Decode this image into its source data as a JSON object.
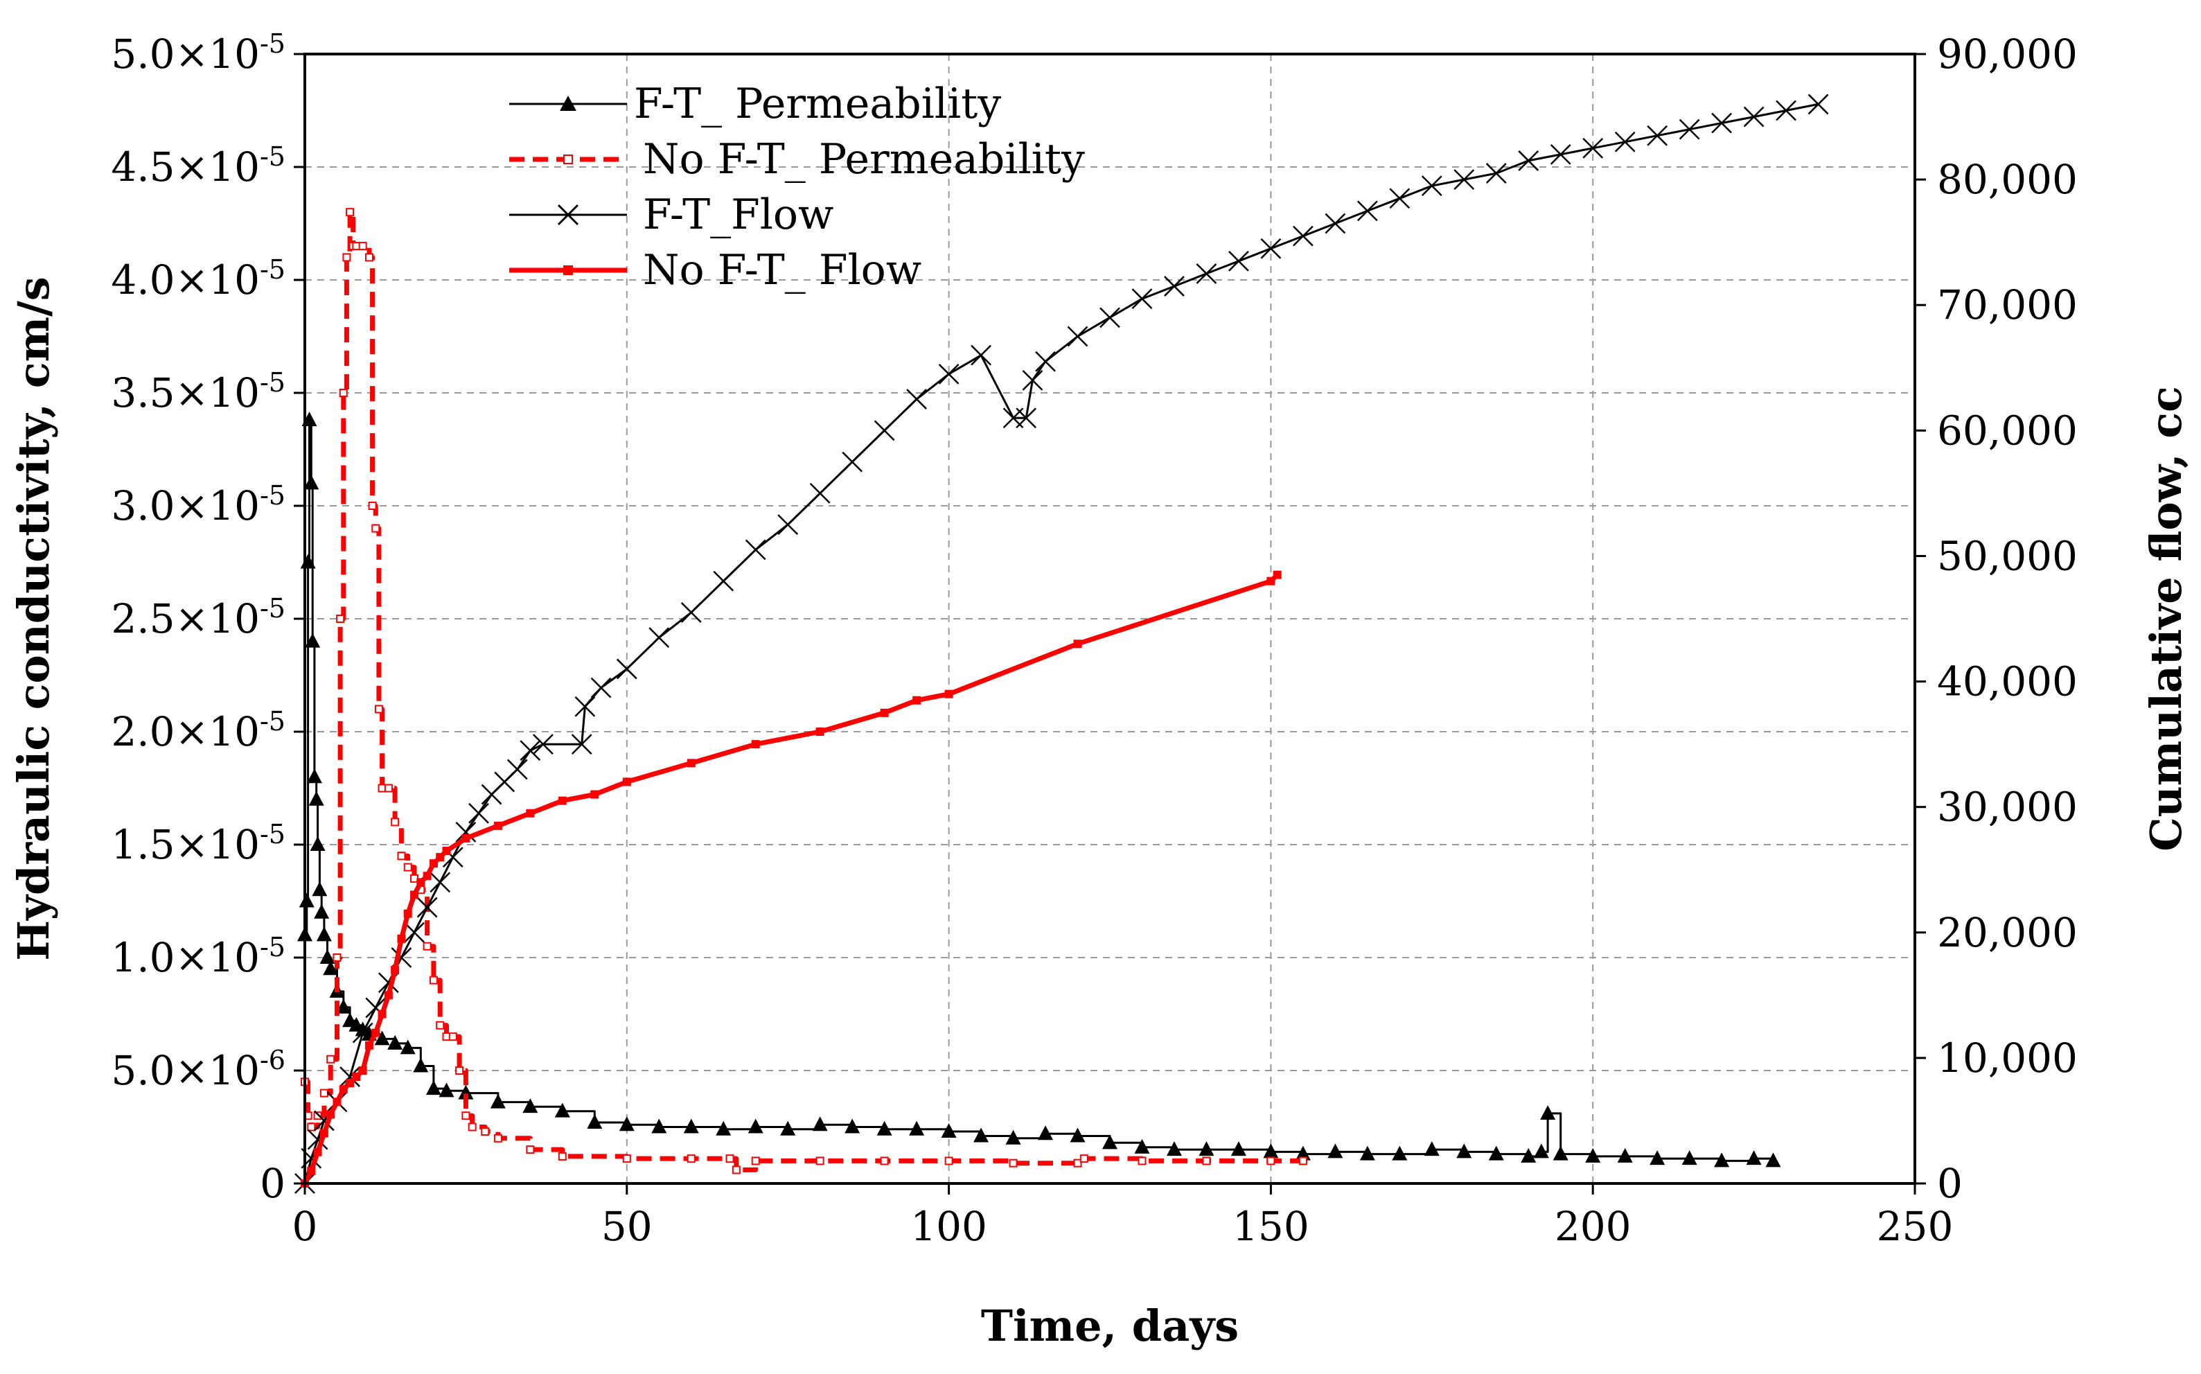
{
  "chart_data": {
    "type": "line",
    "title": "",
    "xlabel": "Time, days",
    "ylabel_left": "Hydraulic conductivity, cm/s",
    "ylabel_right": "Cumulative flow, cc",
    "xlim": [
      0,
      250
    ],
    "ylim_left": [
      0,
      5e-05
    ],
    "ylim_right": [
      0,
      90000
    ],
    "grid": true,
    "legend_position": "top-left",
    "x_ticks": [
      {
        "v": 0,
        "label": "0"
      },
      {
        "v": 50,
        "label": "50"
      },
      {
        "v": 100,
        "label": "100"
      },
      {
        "v": 150,
        "label": "150"
      },
      {
        "v": 200,
        "label": "200"
      },
      {
        "v": 250,
        "label": "250"
      }
    ],
    "y_left_ticks": [
      {
        "v": 0,
        "base": "0",
        "exp": ""
      },
      {
        "v": 5e-06,
        "base": "5.0×10",
        "exp": "-6"
      },
      {
        "v": 1e-05,
        "base": "1.0×10",
        "exp": "-5"
      },
      {
        "v": 1.5e-05,
        "base": "1.5×10",
        "exp": "-5"
      },
      {
        "v": 2e-05,
        "base": "2.0×10",
        "exp": "-5"
      },
      {
        "v": 2.5e-05,
        "base": "2.5×10",
        "exp": "-5"
      },
      {
        "v": 3e-05,
        "base": "3.0×10",
        "exp": "-5"
      },
      {
        "v": 3.5e-05,
        "base": "3.5×10",
        "exp": "-5"
      },
      {
        "v": 4e-05,
        "base": "4.0×10",
        "exp": "-5"
      },
      {
        "v": 4.5e-05,
        "base": "4.5×10",
        "exp": "-5"
      },
      {
        "v": 5e-05,
        "base": "5.0×10",
        "exp": "-5"
      }
    ],
    "y_right_ticks": [
      {
        "v": 0,
        "label": "0"
      },
      {
        "v": 10000,
        "label": "10,000"
      },
      {
        "v": 20000,
        "label": "20,000"
      },
      {
        "v": 30000,
        "label": "30,000"
      },
      {
        "v": 40000,
        "label": "40,000"
      },
      {
        "v": 50000,
        "label": "50,000"
      },
      {
        "v": 60000,
        "label": "60,000"
      },
      {
        "v": 70000,
        "label": "70,000"
      },
      {
        "v": 80000,
        "label": "80,000"
      },
      {
        "v": 90000,
        "label": "90,000"
      }
    ],
    "series": [
      {
        "name": " F-T_ Permeability",
        "axis": "left",
        "color": "#000000",
        "line_style": "solid",
        "marker": "triangle",
        "x": [
          0,
          0.3,
          0.5,
          0.7,
          1.0,
          1.2,
          1.5,
          1.8,
          2.0,
          2.3,
          2.6,
          3.0,
          3.5,
          4.0,
          5.0,
          6.0,
          7.0,
          8.0,
          9.0,
          10,
          12,
          14,
          16,
          18,
          20,
          22,
          25,
          30,
          35,
          40,
          45,
          50,
          55,
          60,
          65,
          70,
          75,
          80,
          85,
          90,
          95,
          100,
          105,
          110,
          115,
          120,
          125,
          130,
          135,
          140,
          145,
          150,
          155,
          160,
          165,
          170,
          175,
          180,
          185,
          190,
          192,
          193,
          195,
          200,
          205,
          210,
          215,
          220,
          225,
          228
        ],
        "y": [
          1.1e-05,
          1.25e-05,
          2.75e-05,
          3.38e-05,
          3.1e-05,
          2.4e-05,
          1.8e-05,
          1.7e-05,
          1.5e-05,
          1.3e-05,
          1.2e-05,
          1.1e-05,
          1e-05,
          9.5e-06,
          8.5e-06,
          7.8e-06,
          7.2e-06,
          7e-06,
          6.8e-06,
          6.6e-06,
          6.4e-06,
          6.2e-06,
          6e-06,
          5.2e-06,
          4.2e-06,
          4.1e-06,
          4e-06,
          3.6e-06,
          3.4e-06,
          3.2e-06,
          2.7e-06,
          2.6e-06,
          2.5e-06,
          2.5e-06,
          2.4e-06,
          2.5e-06,
          2.4e-06,
          2.6e-06,
          2.5e-06,
          2.4e-06,
          2.4e-06,
          2.3e-06,
          2.1e-06,
          2e-06,
          2.2e-06,
          2.1e-06,
          1.8e-06,
          1.6e-06,
          1.5e-06,
          1.5e-06,
          1.5e-06,
          1.4e-06,
          1.3e-06,
          1.4e-06,
          1.3e-06,
          1.3e-06,
          1.5e-06,
          1.4e-06,
          1.3e-06,
          1.2e-06,
          1.4e-06,
          3.1e-06,
          1.3e-06,
          1.2e-06,
          1.2e-06,
          1.1e-06,
          1.1e-06,
          1e-06,
          1.1e-06,
          1e-06
        ]
      },
      {
        "name": "No F-T_ Permeability",
        "axis": "left",
        "color": "#ff0000",
        "line_style": "dashed",
        "marker": "small-square",
        "x": [
          0,
          0.5,
          1,
          2,
          3,
          4,
          5,
          5.5,
          6,
          6.5,
          7,
          7.5,
          8,
          9,
          10,
          10.5,
          11,
          11.5,
          12,
          13,
          14,
          15,
          16,
          17,
          18,
          19,
          20,
          21,
          22,
          23,
          24,
          25,
          26,
          28,
          30,
          35,
          40,
          50,
          60,
          66,
          67,
          70,
          80,
          90,
          100,
          110,
          120,
          121,
          130,
          140,
          150,
          155
        ],
        "y": [
          4.5e-06,
          3e-06,
          2.5e-06,
          3e-06,
          4e-06,
          5.5e-06,
          1e-05,
          2.5e-05,
          3.5e-05,
          4.1e-05,
          4.3e-05,
          4.15e-05,
          4.15e-05,
          4.15e-05,
          4.1e-05,
          3e-05,
          2.9e-05,
          2.1e-05,
          1.75e-05,
          1.75e-05,
          1.6e-05,
          1.45e-05,
          1.4e-05,
          1.35e-05,
          1.3e-05,
          1.05e-05,
          9e-06,
          7e-06,
          6.5e-06,
          6.5e-06,
          5e-06,
          3e-06,
          2.5e-06,
          2.3e-06,
          2e-06,
          1.5e-06,
          1.2e-06,
          1.1e-06,
          1.1e-06,
          1.1e-06,
          6e-07,
          1e-06,
          1e-06,
          1e-06,
          1e-06,
          9e-07,
          9e-07,
          1.1e-06,
          1e-06,
          1e-06,
          1e-06,
          1e-06
        ]
      },
      {
        "name": "F-T_Flow",
        "axis": "right",
        "color": "#000000",
        "line_style": "solid",
        "marker": "x",
        "x": [
          0,
          1,
          2,
          3,
          5,
          7,
          9,
          11,
          13,
          15,
          17,
          19,
          21,
          23,
          25,
          27,
          29,
          31,
          33,
          35,
          37,
          43,
          43.5,
          46,
          50,
          55,
          60,
          65,
          70,
          75,
          80,
          85,
          90,
          95,
          100,
          105,
          110,
          112,
          113,
          115,
          120,
          125,
          130,
          135,
          140,
          145,
          150,
          155,
          160,
          165,
          170,
          175,
          180,
          185,
          190,
          195,
          200,
          205,
          210,
          215,
          220,
          225,
          230,
          235
        ],
        "y": [
          0,
          2000,
          3500,
          5000,
          6500,
          8500,
          12000,
          14000,
          16000,
          18000,
          20000,
          22000,
          24000,
          26000,
          28000,
          29500,
          31000,
          32000,
          33000,
          34500,
          35000,
          35000,
          38000,
          39500,
          41000,
          43500,
          45500,
          48000,
          50500,
          52500,
          55000,
          57500,
          60000,
          62500,
          64500,
          66000,
          61000,
          61000,
          64000,
          65500,
          67500,
          69000,
          70500,
          71500,
          72500,
          73500,
          74500,
          75500,
          76500,
          77500,
          78500,
          79500,
          80000,
          80500,
          81500,
          82000,
          82500,
          83000,
          83500,
          84000,
          84500,
          85000,
          85500,
          86000
        ]
      },
      {
        "name": "No F-T_ Flow",
        "axis": "right",
        "color": "#ff0000",
        "line_style": "solid",
        "marker": "small-square",
        "x": [
          0,
          1,
          2,
          3,
          4,
          5,
          6,
          7,
          8,
          9,
          10,
          11,
          12,
          13,
          14,
          15,
          16,
          17,
          18,
          19,
          20,
          21,
          22,
          25,
          30,
          35,
          40,
          45,
          50,
          60,
          70,
          80,
          90,
          95,
          100,
          120,
          150,
          151
        ],
        "y": [
          0,
          1000,
          2500,
          4000,
          5500,
          6500,
          7500,
          8000,
          8500,
          9000,
          11000,
          12000,
          13500,
          15000,
          17000,
          19500,
          21500,
          23000,
          24000,
          24500,
          25500,
          26000,
          26500,
          27500,
          28500,
          29500,
          30500,
          31000,
          32000,
          33500,
          35000,
          36000,
          37500,
          38500,
          39000,
          43000,
          48000,
          48500
        ]
      }
    ]
  }
}
